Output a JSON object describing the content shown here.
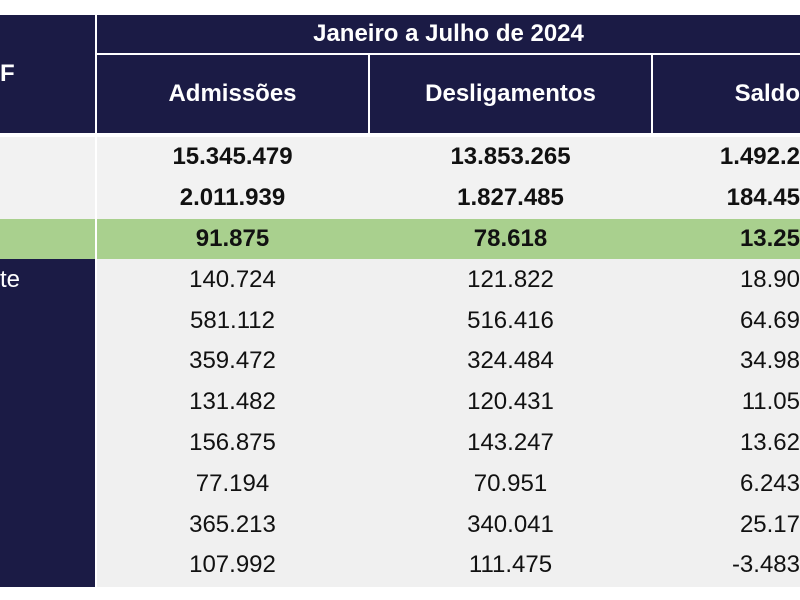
{
  "header": {
    "corner": "F",
    "group": "Janeiro a Julho de 2024",
    "columns": [
      "Admissões",
      "Desligamentos",
      "Saldo"
    ]
  },
  "table": {
    "rows": [
      {
        "cells": [
          "15.345.479",
          "13.853.265",
          "1.492.2"
        ]
      },
      {
        "cells": [
          "2.011.939",
          "1.827.485",
          "184.45"
        ]
      },
      {
        "cells": [
          "91.875",
          "78.618",
          "13.25"
        ]
      },
      {
        "label": "te",
        "cells": [
          "140.724",
          "121.822",
          "18.90"
        ]
      },
      {
        "cells": [
          "581.112",
          "516.416",
          "64.69"
        ]
      },
      {
        "cells": [
          "359.472",
          "324.484",
          "34.98"
        ]
      },
      {
        "cells": [
          "131.482",
          "120.431",
          "11.05"
        ]
      },
      {
        "cells": [
          "156.875",
          "143.247",
          "13.62"
        ]
      },
      {
        "cells": [
          "77.194",
          "70.951",
          "6.243"
        ]
      },
      {
        "cells": [
          "365.213",
          "340.041",
          "25.17"
        ]
      },
      {
        "cells": [
          "107.992",
          "111.475",
          "-3.483"
        ]
      }
    ]
  }
}
